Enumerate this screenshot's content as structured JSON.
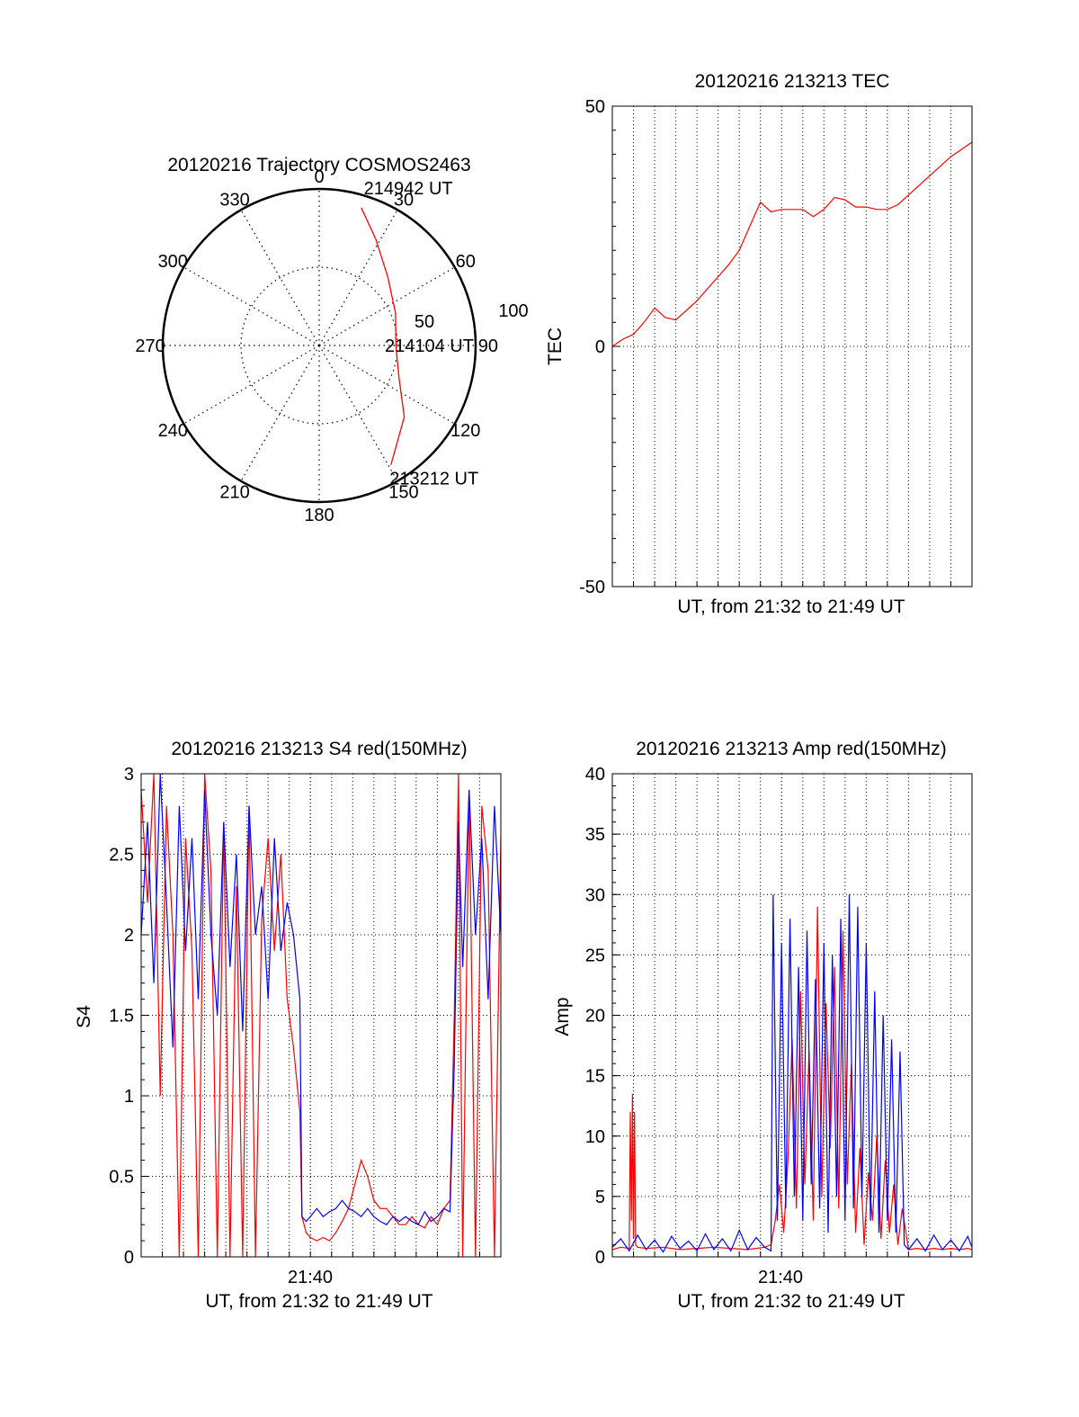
{
  "chart_data": [
    {
      "type": "polar",
      "title": "20120216 Trajectory COSMOS2463",
      "angle_labels": [
        "0",
        "30",
        "60",
        "90",
        "120",
        "150",
        "180",
        "210",
        "240",
        "270",
        "300",
        "330"
      ],
      "radial_labels": [
        "50",
        "100"
      ],
      "rlim": [
        0,
        100
      ],
      "grid": true,
      "series": [
        {
          "color": "#ff0000",
          "points": [
            {
              "az": 17,
              "r": 92
            },
            {
              "az": 28,
              "r": 77
            },
            {
              "az": 45,
              "r": 62
            },
            {
              "az": 67,
              "r": 53
            },
            {
              "az": 90,
              "r": 49
            },
            {
              "az": 112,
              "r": 55
            },
            {
              "az": 130,
              "r": 71
            },
            {
              "az": 149,
              "r": 89
            }
          ]
        }
      ],
      "annotations": [
        {
          "text": "214942 UT",
          "az": 20,
          "r": 107
        },
        {
          "text": "214104 UT",
          "az": 90,
          "r": 50
        },
        {
          "text": "213212 UT",
          "az": 148,
          "r": 100
        }
      ]
    },
    {
      "type": "line",
      "title": "20120216 213213 TEC",
      "xlabel": "UT, from 21:32 to 21:49 UT",
      "ylabel": "TEC",
      "xlim": [
        0,
        17
      ],
      "ylim": [
        -50,
        50
      ],
      "y_ticks": [
        "50",
        "0",
        "-50"
      ],
      "grid": true,
      "series": [
        {
          "color": "#ff0000",
          "x": [
            0,
            0.5,
            1.0,
            1.5,
            2.0,
            2.5,
            3.0,
            3.5,
            4.0,
            4.5,
            5.0,
            5.5,
            6.0,
            6.5,
            7.0,
            7.5,
            8.0,
            8.5,
            9.0,
            9.5,
            10.0,
            10.5,
            11.0,
            11.5,
            12.0,
            12.5,
            13.0,
            13.5,
            14.0,
            14.5,
            15.0,
            15.5,
            16.0,
            16.5,
            17.0
          ],
          "y": [
            0,
            1.5,
            2.5,
            5,
            8,
            6,
            5.5,
            7.5,
            9.5,
            12,
            14.5,
            17,
            20,
            25,
            30,
            28,
            28.5,
            28.5,
            28.5,
            27,
            28.5,
            31,
            30.5,
            29,
            29,
            28.5,
            28.5,
            29.5,
            31.5,
            33.5,
            35.5,
            37.5,
            39.5,
            41,
            42.5
          ]
        }
      ]
    },
    {
      "type": "line",
      "title": "20120216 213213 S4 red(150MHz)",
      "xlabel": "UT, from 21:32 to 21:49 UT",
      "ylabel": "S4",
      "xlim": [
        0,
        17
      ],
      "ylim": [
        0,
        3
      ],
      "x_tick_label": "21:40",
      "x_tick_value": 8,
      "y_ticks": [
        "0",
        "0.5",
        "1",
        "1.5",
        "2",
        "2.5",
        "3"
      ],
      "grid": true,
      "series": [
        {
          "color": "#ff0000",
          "x": [
            0.0,
            0.3,
            0.6,
            0.9,
            1.2,
            1.5,
            1.8,
            2.1,
            2.4,
            2.7,
            3.0,
            3.3,
            3.6,
            3.9,
            4.2,
            4.5,
            4.8,
            5.1,
            5.4,
            5.7,
            6.0,
            6.3,
            6.6,
            6.9,
            7.2,
            7.5,
            7.6,
            7.8,
            8.0,
            8.3,
            8.6,
            8.9,
            9.2,
            9.5,
            9.8,
            10.1,
            10.4,
            10.7,
            11.0,
            11.3,
            11.6,
            11.9,
            12.2,
            12.5,
            12.8,
            13.1,
            13.4,
            13.7,
            14.0,
            14.3,
            14.6,
            14.8,
            15.0,
            15.2,
            15.5,
            15.8,
            16.1,
            16.4,
            16.7,
            17.0
          ],
          "y": [
            2.9,
            2.2,
            3.0,
            1.0,
            2.8,
            2.0,
            0.0,
            2.6,
            1.9,
            0.0,
            3.0,
            2.4,
            0.0,
            2.7,
            0.0,
            2.3,
            0.0,
            2.8,
            0.0,
            2.1,
            2.6,
            1.9,
            2.5,
            1.6,
            1.3,
            0.9,
            0.25,
            0.15,
            0.12,
            0.1,
            0.12,
            0.1,
            0.15,
            0.22,
            0.3,
            0.45,
            0.6,
            0.5,
            0.35,
            0.3,
            0.3,
            0.25,
            0.2,
            0.2,
            0.25,
            0.2,
            0.18,
            0.25,
            0.2,
            0.3,
            0.35,
            1.5,
            3.0,
            0.0,
            2.9,
            0.0,
            2.8,
            2.4,
            0.0,
            2.6
          ]
        },
        {
          "color": "#0000ff",
          "x": [
            0.0,
            0.3,
            0.6,
            0.9,
            1.2,
            1.5,
            1.8,
            2.1,
            2.4,
            2.7,
            3.0,
            3.3,
            3.6,
            3.9,
            4.2,
            4.5,
            4.8,
            5.1,
            5.4,
            5.7,
            6.0,
            6.3,
            6.6,
            6.9,
            7.2,
            7.5,
            7.6,
            7.8,
            8.0,
            8.3,
            8.6,
            8.9,
            9.2,
            9.5,
            9.8,
            10.1,
            10.4,
            10.7,
            11.0,
            11.3,
            11.6,
            11.9,
            12.2,
            12.5,
            12.8,
            13.1,
            13.4,
            13.7,
            14.0,
            14.3,
            14.6,
            14.8,
            15.0,
            15.2,
            15.5,
            15.8,
            16.1,
            16.4,
            16.7,
            17.0
          ],
          "y": [
            2.0,
            2.7,
            1.7,
            3.0,
            2.2,
            1.3,
            2.8,
            1.9,
            2.6,
            1.6,
            2.9,
            2.0,
            1.5,
            2.7,
            1.8,
            2.5,
            1.4,
            2.8,
            2.0,
            2.3,
            1.6,
            2.6,
            1.9,
            2.2,
            2.0,
            1.6,
            0.25,
            0.22,
            0.25,
            0.3,
            0.25,
            0.28,
            0.3,
            0.35,
            0.3,
            0.28,
            0.25,
            0.3,
            0.25,
            0.22,
            0.2,
            0.25,
            0.22,
            0.25,
            0.22,
            0.2,
            0.28,
            0.22,
            0.25,
            0.3,
            0.28,
            1.2,
            2.7,
            1.8,
            2.9,
            2.0,
            2.6,
            1.6,
            2.8,
            2.0
          ]
        }
      ]
    },
    {
      "type": "line",
      "title": "20120216 213213 Amp red(150MHz)",
      "xlabel": "UT, from 21:32 to 21:49 UT",
      "ylabel": "Amp",
      "xlim": [
        0,
        17
      ],
      "ylim": [
        0,
        40
      ],
      "x_tick_label": "21:40",
      "x_tick_value": 8,
      "y_ticks": [
        "0",
        "5",
        "10",
        "15",
        "20",
        "25",
        "30",
        "35",
        "40"
      ],
      "grid": true,
      "series": [
        {
          "color": "#ff0000",
          "x": [
            0.0,
            0.4,
            0.8,
            0.85,
            0.9,
            0.95,
            1.0,
            1.05,
            1.1,
            1.2,
            1.6,
            2.4,
            3.2,
            4.0,
            4.8,
            5.6,
            6.4,
            7.2,
            7.5,
            7.7,
            7.9,
            8.1,
            8.3,
            8.5,
            8.7,
            8.9,
            9.1,
            9.3,
            9.5,
            9.7,
            9.9,
            10.1,
            10.3,
            10.5,
            10.7,
            10.9,
            11.1,
            11.3,
            11.5,
            11.7,
            11.9,
            12.1,
            12.3,
            12.5,
            12.7,
            12.9,
            13.1,
            13.3,
            13.5,
            13.7,
            14.0,
            14.4,
            14.8,
            15.2,
            15.6,
            16.0,
            16.4,
            16.8,
            17.0
          ],
          "y": [
            0.6,
            0.8,
            0.7,
            12,
            3,
            13.5,
            1.5,
            12,
            1,
            0.8,
            0.7,
            0.8,
            0.6,
            0.7,
            0.8,
            0.7,
            0.6,
            0.8,
            1,
            3,
            6,
            2,
            8,
            18,
            4,
            22,
            6,
            17,
            3,
            29,
            5,
            21,
            9,
            24,
            4,
            27,
            6,
            16,
            2,
            9,
            1,
            7,
            3,
            10,
            1.5,
            8,
            2,
            6,
            1,
            4,
            0.6,
            0.7,
            0.6,
            0.7,
            0.6,
            0.7,
            0.6,
            0.7,
            0.6
          ]
        },
        {
          "color": "#0000ff",
          "x": [
            0.0,
            0.4,
            0.8,
            1.2,
            1.6,
            2.0,
            2.4,
            2.8,
            3.2,
            3.6,
            4.0,
            4.4,
            4.8,
            5.2,
            5.6,
            6.0,
            6.4,
            6.8,
            7.2,
            7.5,
            7.6,
            7.8,
            8.0,
            8.2,
            8.4,
            8.6,
            8.8,
            9.0,
            9.2,
            9.4,
            9.6,
            9.8,
            10.0,
            10.2,
            10.4,
            10.6,
            10.8,
            11.0,
            11.2,
            11.4,
            11.6,
            11.8,
            12.0,
            12.2,
            12.4,
            12.6,
            12.8,
            13.0,
            13.2,
            13.4,
            13.6,
            13.8,
            14.0,
            14.4,
            14.8,
            15.2,
            15.6,
            16.0,
            16.4,
            16.8,
            17.0
          ],
          "y": [
            0.8,
            1.5,
            0.5,
            1.8,
            0.6,
            1.4,
            0.4,
            1.7,
            0.7,
            1.3,
            0.5,
            1.9,
            0.6,
            1.5,
            0.5,
            2.2,
            0.6,
            1.6,
            0.8,
            0.5,
            30,
            3,
            26,
            4,
            28,
            5,
            24,
            3,
            27,
            6,
            23,
            4,
            26,
            2,
            25,
            5,
            28,
            3,
            30,
            4,
            29,
            5,
            26,
            3,
            22,
            2,
            20,
            3,
            18,
            2,
            17,
            1,
            0.6,
            1.5,
            0.5,
            1.8,
            0.6,
            1.4,
            0.5,
            1.7,
            0.8
          ]
        }
      ]
    }
  ]
}
